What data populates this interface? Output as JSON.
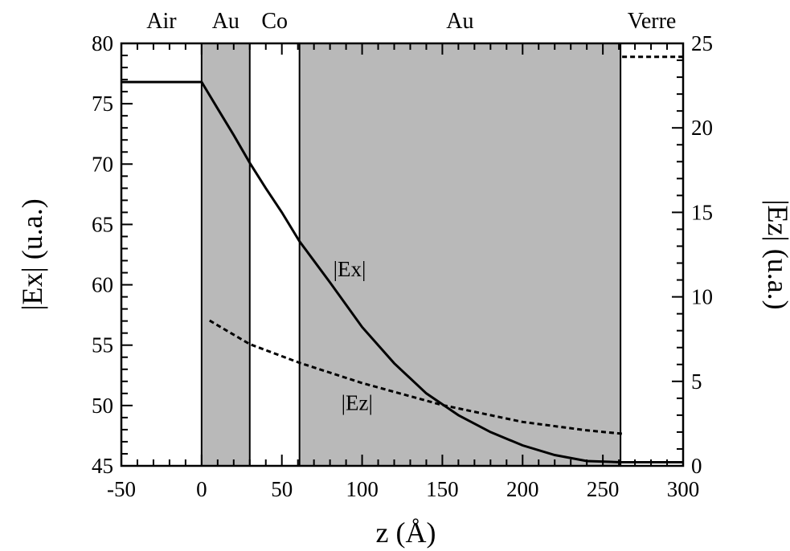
{
  "chart_data": {
    "type": "line",
    "title": "",
    "xlabel": "z (Å)",
    "ylabel": "|Ex| (u.a.)",
    "y2label": "|Ez| (u.a.)",
    "xlim": [
      -50,
      300
    ],
    "ylim": [
      45,
      80
    ],
    "y2lim": [
      0,
      25
    ],
    "xticks": [
      -50,
      0,
      50,
      100,
      150,
      200,
      250,
      300
    ],
    "yticks": [
      45,
      50,
      55,
      60,
      65,
      70,
      75,
      80
    ],
    "y2ticks": [
      0,
      5,
      10,
      15,
      20,
      25
    ],
    "grid": false,
    "colors": {
      "shade": "#b9b9b9",
      "line": "#000000",
      "background": "#ffffff"
    },
    "layers": [
      {
        "label": "Air",
        "from": -50,
        "to": 0,
        "shaded": false
      },
      {
        "label": "Au",
        "from": 0,
        "to": 30,
        "shaded": true
      },
      {
        "label": "Co",
        "from": 30,
        "to": 61,
        "shaded": false
      },
      {
        "label": "Au",
        "from": 61,
        "to": 261,
        "shaded": true
      },
      {
        "label": "Verre",
        "from": 261,
        "to": 300,
        "shaded": false
      }
    ],
    "series": [
      {
        "name": "|Ex|",
        "axis": "left",
        "style": "solid",
        "x": [
          -50,
          0,
          10,
          20,
          30,
          40,
          50,
          61,
          80,
          100,
          120,
          140,
          160,
          180,
          200,
          220,
          240,
          261,
          300
        ],
        "y": [
          76.8,
          76.8,
          74.6,
          72.4,
          70.1,
          68.0,
          66.0,
          63.6,
          60.2,
          56.5,
          53.5,
          51.0,
          49.2,
          47.8,
          46.7,
          45.9,
          45.4,
          45.3,
          45.3
        ]
      },
      {
        "name": "|Ez|",
        "axis": "right",
        "style": "dashed",
        "x": [
          5,
          30,
          61,
          100,
          150,
          200,
          240,
          262
        ],
        "y": [
          8.6,
          7.2,
          6.1,
          4.9,
          3.6,
          2.6,
          2.1,
          1.9
        ]
      },
      {
        "name": "",
        "axis": "right",
        "style": "dashed",
        "x": [
          262,
          300
        ],
        "y": [
          24.2,
          24.2
        ]
      }
    ]
  }
}
